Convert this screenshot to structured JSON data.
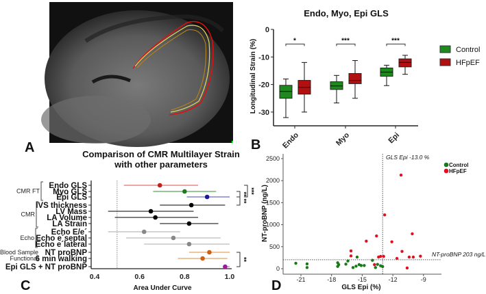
{
  "panels": {
    "a": "A",
    "b": "B",
    "c": "C",
    "d": "D"
  },
  "colors": {
    "control": "#1e8a1e",
    "hfpef": "#b01010",
    "control_point": "#1a7a1a",
    "hfpef_point": "#e01020"
  },
  "chart_data": [
    {
      "id": "b",
      "type": "box",
      "title": "Endo, Myo, Epi GLS",
      "ylabel": "Longitudinal Strain (%)",
      "xlabel": "",
      "ylim": [
        -35,
        0
      ],
      "yticks": [
        0,
        -10,
        -20,
        -30
      ],
      "categories": [
        "Endo",
        "Myo",
        "Epi"
      ],
      "legend": {
        "position": "right",
        "entries": [
          "Control",
          "HFpEF"
        ]
      },
      "significance": [
        "*",
        "***",
        "***"
      ],
      "series": [
        {
          "name": "Control",
          "boxes": [
            {
              "min": -32,
              "q1": -25,
              "median": -22.5,
              "q3": -20.3,
              "max": -18
            },
            {
              "min": -26.7,
              "q1": -21.8,
              "median": -20.5,
              "q3": -19,
              "max": -16.7
            },
            {
              "min": -20.4,
              "q1": -17,
              "median": -15.5,
              "q3": -14,
              "max": -13
            }
          ]
        },
        {
          "name": "HFpEF",
          "boxes": [
            {
              "min": -30,
              "q1": -23.5,
              "median": -21,
              "q3": -18.5,
              "max": -12
            },
            {
              "min": -25,
              "q1": -19.7,
              "median": -18.5,
              "q3": -16,
              "max": -11.3
            },
            {
              "min": -16.3,
              "q1": -13.6,
              "median": -12,
              "q3": -10.7,
              "max": -9.4
            }
          ]
        }
      ]
    },
    {
      "id": "c",
      "type": "forest",
      "title": [
        "Comparison of CMR Multilayer Strain",
        "with other parameters"
      ],
      "xlabel": "Area Under Curve",
      "xlim": [
        0.4,
        1.0
      ],
      "xticks": [
        "0.4",
        "0.6",
        "0.8",
        "1.0"
      ],
      "reference_line": 0.5,
      "groups": [
        {
          "label": "CMR FT",
          "rows": [
            0,
            2
          ]
        },
        {
          "label": "CMR",
          "rows": [
            3,
            6
          ]
        },
        {
          "label": "Echo",
          "rows": [
            7,
            9
          ]
        },
        {
          "label": "Blood Sample",
          "rows": [
            10,
            10
          ]
        },
        {
          "label": "Functional",
          "rows": [
            11,
            11
          ]
        }
      ],
      "rows": [
        {
          "label": "Endo GLS",
          "auc": 0.69,
          "lo": 0.53,
          "hi": 0.86,
          "color": "#c0201e",
          "ci_color": "#e07070"
        },
        {
          "label": "Myo GLS",
          "auc": 0.8,
          "lo": 0.66,
          "hi": 0.94,
          "color": "#1e7a1e",
          "ci_color": "#5aa85a"
        },
        {
          "label": "Epi GLS",
          "auc": 0.9,
          "lo": 0.81,
          "hi": 1.0,
          "color": "#1a1a9a",
          "ci_color": "#6a6ac8"
        },
        {
          "label": "IVS thickness",
          "auc": 0.83,
          "lo": 0.69,
          "hi": 0.98,
          "color": "#000000",
          "ci_color": "#333333"
        },
        {
          "label": "LV Mass",
          "auc": 0.65,
          "lo": 0.46,
          "hi": 0.84,
          "color": "#000000",
          "ci_color": "#333333"
        },
        {
          "label": "LA Volume",
          "auc": 0.67,
          "lo": 0.49,
          "hi": 0.86,
          "color": "#000000",
          "ci_color": "#333333"
        },
        {
          "label": "LA Strain",
          "auc": 0.82,
          "lo": 0.69,
          "hi": 0.95,
          "color": "#000000",
          "ci_color": "#333333"
        },
        {
          "label": "Echo E/e´",
          "auc": 0.62,
          "lo": 0.46,
          "hi": 0.78,
          "color": "#888888",
          "ci_color": "#bbbbbb"
        },
        {
          "label": "Echo e´septal",
          "auc": 0.75,
          "lo": 0.54,
          "hi": 0.96,
          "color": "#888888",
          "ci_color": "#bbbbbb"
        },
        {
          "label": "Echo e´lateral",
          "auc": 0.82,
          "lo": 0.62,
          "hi": 1.0,
          "color": "#888888",
          "ci_color": "#bbbbbb"
        },
        {
          "label": "NT proBNP",
          "auc": 0.91,
          "lo": 0.82,
          "hi": 1.0,
          "color": "#d06010",
          "ci_color": "#e8a060"
        },
        {
          "label": "6 min walking",
          "auc": 0.88,
          "lo": 0.77,
          "hi": 0.99,
          "color": "#d06010",
          "ci_color": "#e8a060"
        },
        {
          "label": "Epi GLS + NT proBNP",
          "auc": 0.98,
          "lo": 0.97,
          "hi": 1.0,
          "color": "#9a1a9a",
          "ci_color": "#c070c0"
        }
      ],
      "significance": [
        {
          "rows": [
            0,
            2
          ],
          "label": "***"
        },
        {
          "rows": [
            1,
            2
          ],
          "label": "**"
        },
        {
          "rows": [
            2,
            3
          ],
          "label": "**"
        },
        {
          "rows": [
            10,
            12
          ],
          "label": "**"
        }
      ]
    },
    {
      "id": "d",
      "type": "scatter",
      "xlabel": "GLS Epi (%)",
      "ylabel": "NT-proBNP (ng/L)",
      "xlim": [
        -22.7,
        -7.3
      ],
      "ylim": [
        -40,
        2600
      ],
      "xticks": [
        -21,
        -18,
        -15,
        -12,
        -9
      ],
      "yticks": [
        0,
        500,
        1000,
        1500,
        2000,
        2500
      ],
      "legend": {
        "position": "top-right",
        "entries": [
          "Control",
          "HFpEF"
        ]
      },
      "vline": {
        "x": -13.0,
        "label": "GLS Epi -13.0 %"
      },
      "hline": {
        "y": 203,
        "label": "NT-proBNP 203 ng/L"
      },
      "series": [
        {
          "name": "Control",
          "points": [
            [
              -21.5,
              124
            ],
            [
              -20.4,
              109
            ],
            [
              -20.4,
              26
            ],
            [
              -17.4,
              135
            ],
            [
              -17.3,
              93
            ],
            [
              -17.4,
              52
            ],
            [
              -16.6,
              104
            ],
            [
              -16.4,
              176
            ],
            [
              -15.9,
              26
            ],
            [
              -15.6,
              57
            ],
            [
              -15.5,
              264
            ],
            [
              -15.3,
              93
            ],
            [
              -15.1,
              72
            ],
            [
              -14.8,
              72
            ],
            [
              -14.0,
              191
            ],
            [
              -13.7,
              26
            ],
            [
              -13.5,
              98
            ],
            [
              -13.2,
              67
            ],
            [
              -13.0,
              47
            ]
          ]
        },
        {
          "name": "HFpEF",
          "points": [
            [
              -16.1,
              404
            ],
            [
              -16.1,
              290
            ],
            [
              -14.6,
              626
            ],
            [
              -13.6,
              745
            ],
            [
              -13.8,
              93
            ],
            [
              -13.4,
              264
            ],
            [
              -13.2,
              280
            ],
            [
              -12.9,
              280
            ],
            [
              -12.8,
              1222
            ],
            [
              -12.1,
              611
            ],
            [
              -11.6,
              233
            ],
            [
              -11.2,
              2127
            ],
            [
              -11.1,
              393
            ],
            [
              -10.6,
              16
            ],
            [
              -10.4,
              264
            ],
            [
              -10.1,
              792
            ],
            [
              -10.0,
              264
            ],
            [
              -9.3,
              285
            ]
          ]
        }
      ]
    }
  ]
}
